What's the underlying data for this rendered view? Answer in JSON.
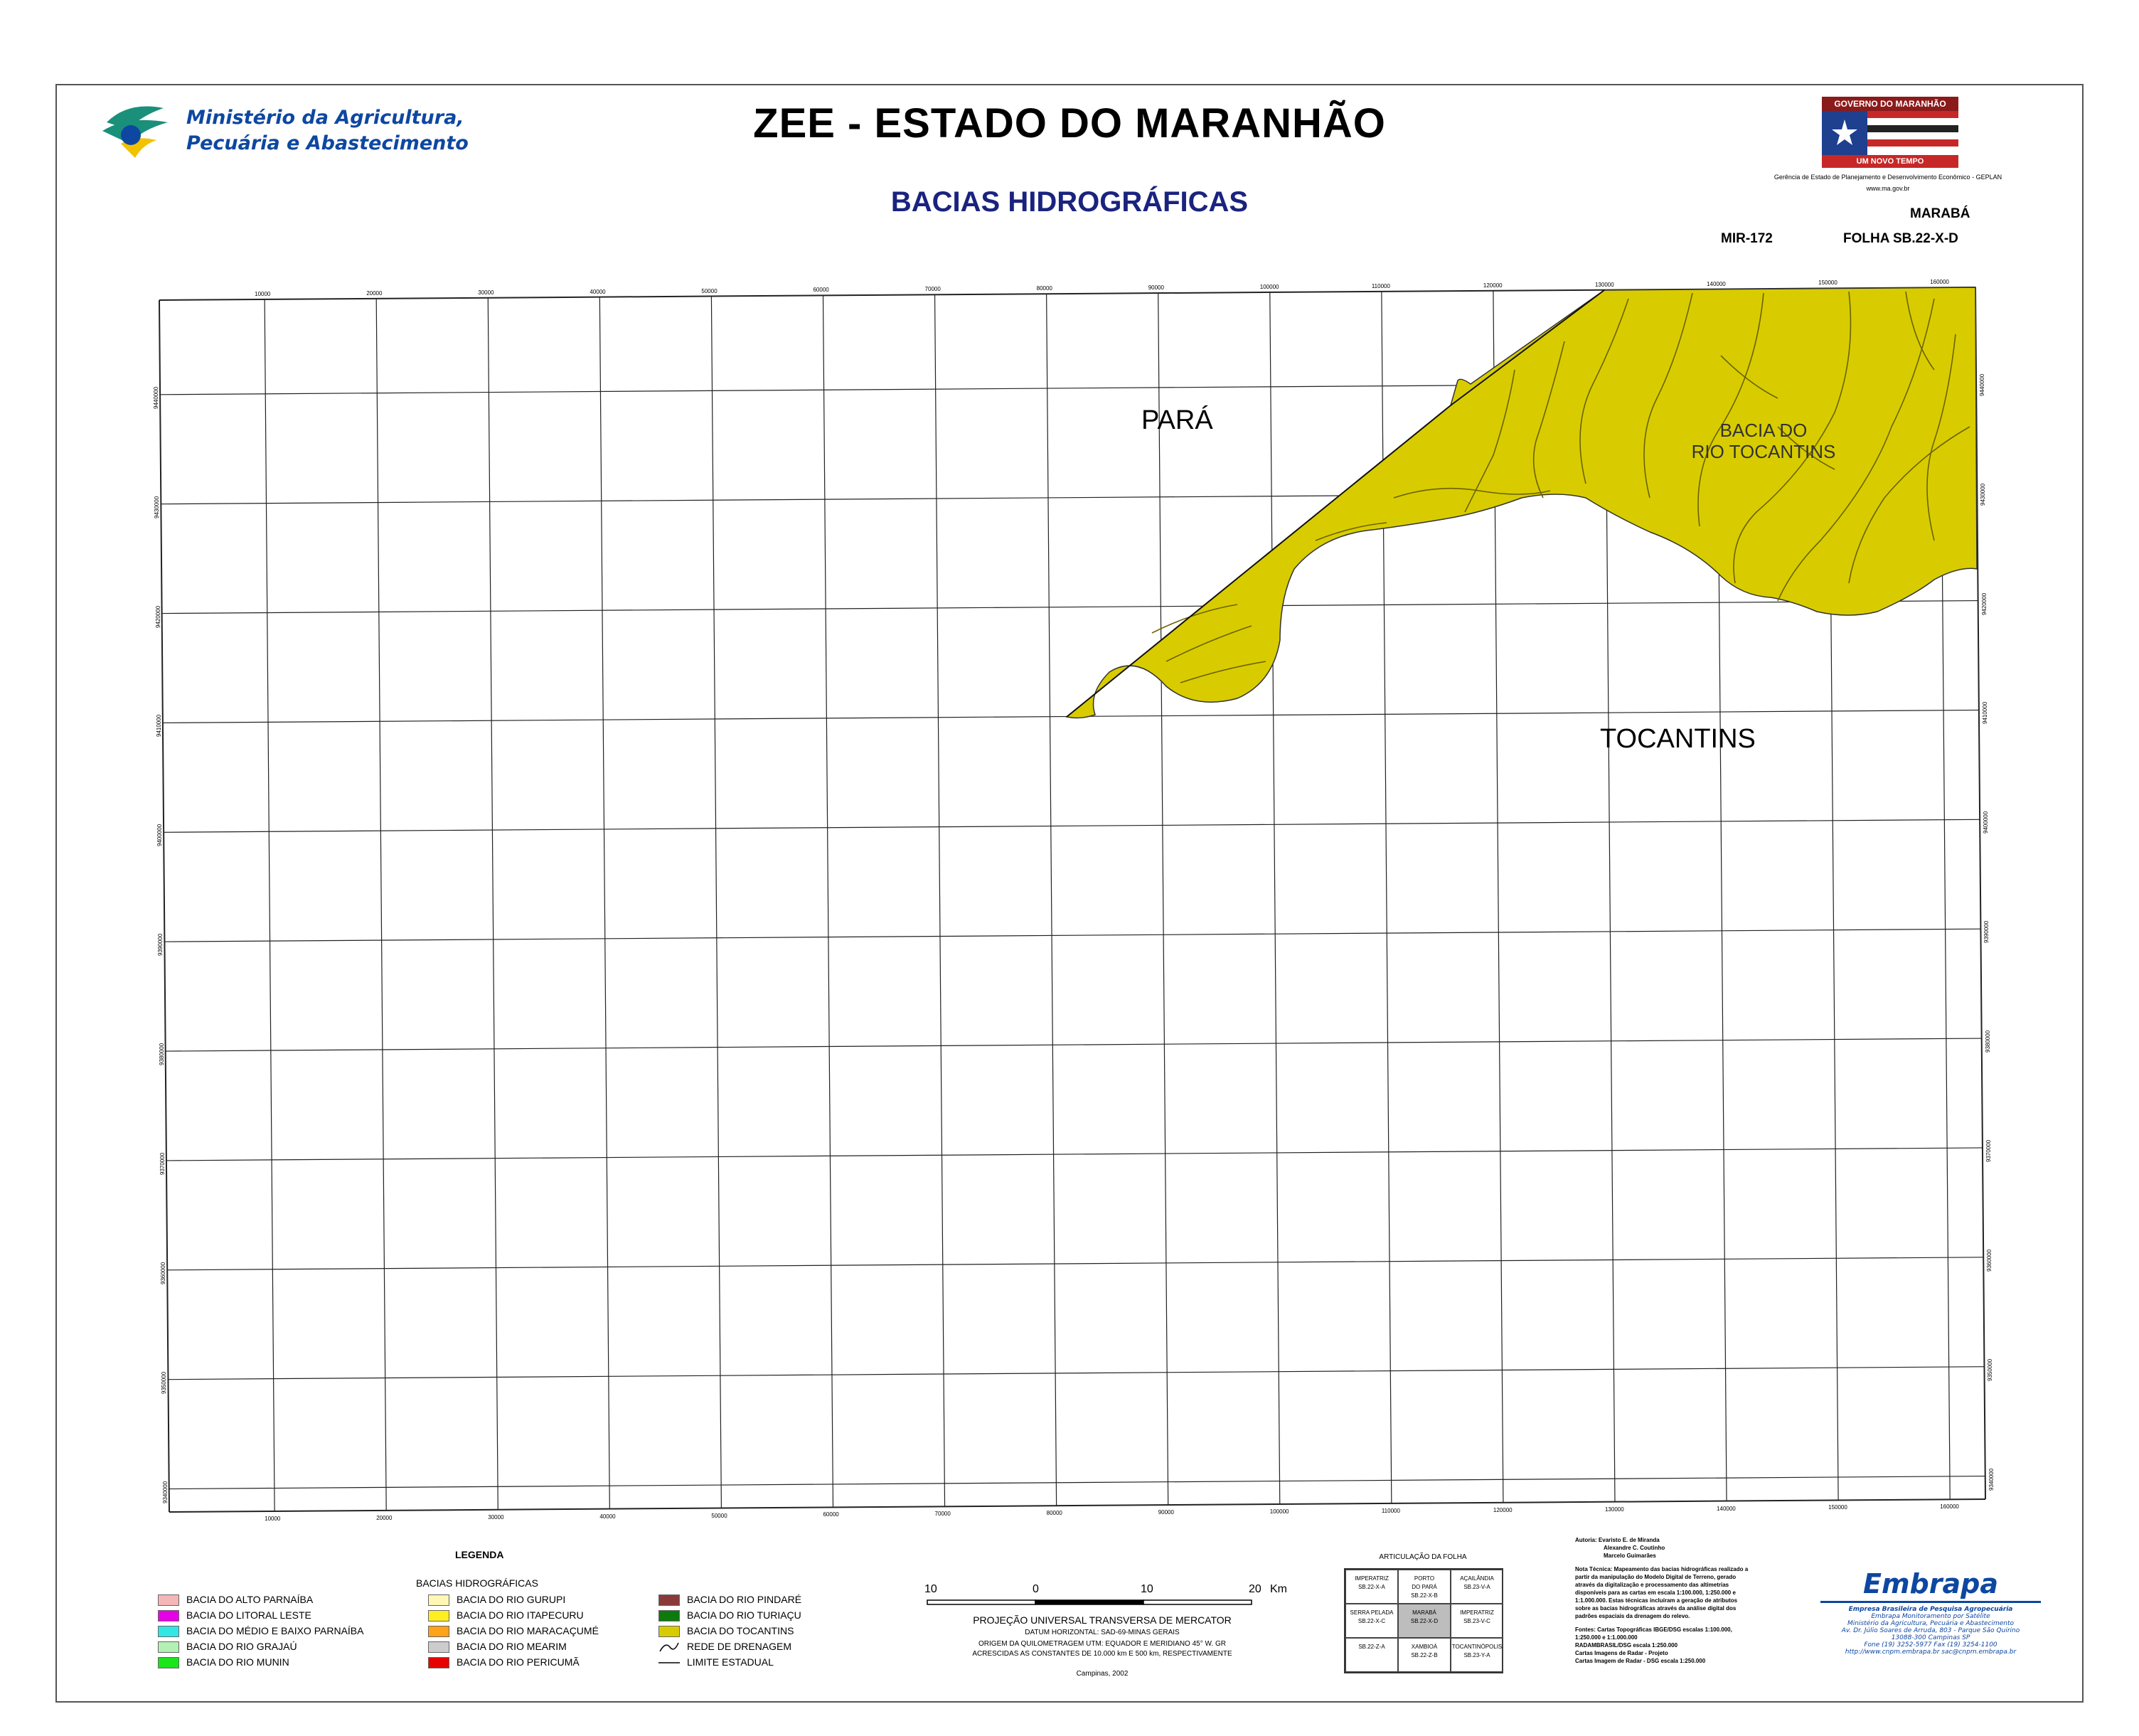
{
  "header": {
    "ministry_line1": "Ministério da Agricultura,",
    "ministry_line2": "Pecuária e Abastecimento",
    "title": "ZEE - ESTADO DO MARANHÃO",
    "subtitle": "BACIAS HIDROGRÁFICAS",
    "gov_logo_top": "GOVERNO DO MARANHÃO",
    "gov_logo_bottom": "UM NOVO TEMPO",
    "gerencia": "Gerência de Estado de Planejamento e Desenvolvimento Econômico - GEPLAN",
    "website": "www.ma.gov.br",
    "sheet_city": "MARABÁ",
    "sheet_mir": "MIR-172",
    "sheet_folha": "FOLHA SB.22-X-D"
  },
  "map": {
    "labels": {
      "para": "PARÁ",
      "tocantins_state": "TOCANTINS",
      "bacia_line1": "BACIA DO",
      "bacia_line2": "RIO TOCANTINS"
    },
    "colors": {
      "basin_fill": "#d8cc00",
      "grid": "#222222",
      "river": "#6b6200"
    },
    "top_ticks": [
      "10000",
      "20000",
      "30000",
      "40000",
      "50000",
      "60000",
      "70000",
      "80000",
      "90000",
      "100000",
      "110000",
      "120000",
      "130000",
      "140000",
      "150000",
      "160000"
    ],
    "bottom_ticks": [
      "10000",
      "20000",
      "30000",
      "40000",
      "50000",
      "60000",
      "70000",
      "80000",
      "90000",
      "100000",
      "110000",
      "120000",
      "130000",
      "140000",
      "150000",
      "160000"
    ],
    "left_ticks": [
      "9440000",
      "9430000",
      "9420000",
      "9410000",
      "9400000",
      "9390000",
      "9380000",
      "9370000",
      "9360000",
      "9350000",
      "9340000"
    ],
    "right_ticks": [
      "9440000",
      "9430000",
      "9420000",
      "9410000",
      "9400000",
      "9390000",
      "9380000",
      "9370000",
      "9360000",
      "9350000",
      "9340000"
    ]
  },
  "legend": {
    "title": "LEGENDA",
    "group_title": "BACIAS HIDROGRÁFICAS",
    "col1": [
      {
        "label": "BACIA DO ALTO PARNAÍBA",
        "color": "#f4b6b6"
      },
      {
        "label": "BACIA DO LITORAL LESTE",
        "color": "#e600e6"
      },
      {
        "label": "BACIA DO MÉDIO E BAIXO PARNAÍBA",
        "color": "#33e6e6"
      },
      {
        "label": "BACIA DO RIO GRAJAÚ",
        "color": "#b3f0b3"
      },
      {
        "label": "BACIA DO RIO MUNIN",
        "color": "#1ae61a"
      }
    ],
    "col2": [
      {
        "label": "BACIA DO RIO GURUPI",
        "color": "#fff7b3"
      },
      {
        "label": "BACIA DO RIO ITAPECURU",
        "color": "#ffee22"
      },
      {
        "label": "BACIA DO RIO MARACAÇUMÉ",
        "color": "#ffa31a"
      },
      {
        "label": "BACIA DO RIO MEARIM",
        "color": "#cccccc"
      },
      {
        "label": "BACIA DO RIO PERICUMÃ",
        "color": "#e60000"
      }
    ],
    "col3": [
      {
        "label": "BACIA DO RIO PINDARÉ",
        "color": "#8b3a3a"
      },
      {
        "label": "BACIA DO RIO TURIAÇU",
        "color": "#0e7a0e"
      },
      {
        "label": "BACIA DO TOCANTINS",
        "color": "#d8cc00"
      }
    ],
    "drainage": "REDE DE DRENAGEM",
    "state_limit": "LIMITE ESTADUAL"
  },
  "scale": {
    "labels": [
      "10",
      "0",
      "10",
      "20"
    ],
    "unit": "Km",
    "projection": "PROJEÇÃO UNIVERSAL TRANSVERSA DE MERCATOR",
    "datum": "DATUM HORIZONTAL: SAD-69-MINAS GERAIS",
    "origin": "ORIGEM DA QUILOMETRAGEM UTM: EQUADOR E MERIDIANO 45° W. GR",
    "constants": "ACRESCIDAS AS CONSTANTES DE 10.000 km E 500 km, RESPECTIVAMENTE",
    "place_date": "Campinas, 2002"
  },
  "articulation": {
    "title": "ARTICULAÇÃO DA FOLHA",
    "cells": [
      [
        "IMPERATRIZ\nSB.22-X-A",
        "PORTO\nDO PARÁ\nSB.22-X-B",
        "AÇAILÂNDIA\nSB.23-V-A"
      ],
      [
        "SERRA PELADA\nSB.22-X-C",
        "MARABÁ\nSB.22-X-D",
        "IMPERATRIZ\nSB.23-V-C"
      ],
      [
        "SB.22-Z-A",
        "XAMBIOÁ\nSB.22-Z-B",
        "TOCANTINÓPOLIS\nSB.23-Y-A"
      ]
    ]
  },
  "credits": {
    "authors_label": "Autoria:",
    "authors": [
      "Evaristo E. de Miranda",
      "Alexandre C. Coutinho",
      "Marcelo Guimarães"
    ],
    "nota_tecnica": "Nota Técnica: Mapeamento das bacias hidrográficas realizado a partir da manipulação do Modelo Digital de Terreno, gerado através da digitalização e processamento das altimetrias disponíveis para as cartas em escala 1:100.000, 1:250.000 e 1:1.000.000. Estas técnicas incluíram a geração de atributos sobre as bacias hidrográficas através da análise digital dos padrões espaciais da drenagem do relevo.",
    "fontes": "Fontes: Cartas Topográficas IBGE/DSG escalas 1:100.000, 1:250.000 e 1:1.000.000",
    "radam": "RADAMBRASIL/DSG escala 1:250.000",
    "cartas_radar_projeto": "Cartas Imagens de Radar - Projeto",
    "cartas_radar": "Cartas Imagem de Radar - DSG escala 1:250.000"
  },
  "embrapa": {
    "logo": "Embrapa",
    "line1": "Empresa Brasileira de Pesquisa Agropecuária",
    "line2": "Embrapa Monitoramento por Satélite",
    "line3": "Ministério da Agricultura, Pecuária e Abastecimento",
    "line4": "Av. Dr. Júlio Soares de Arruda, 803 - Parque São Quirino",
    "line5": "13088-300 Campinas SP",
    "line6": "Fone (19) 3252-5977 Fax (19) 3254-1100",
    "line7": "http://www.cnpm.embrapa.br sac@cnpm.embrapa.br"
  }
}
